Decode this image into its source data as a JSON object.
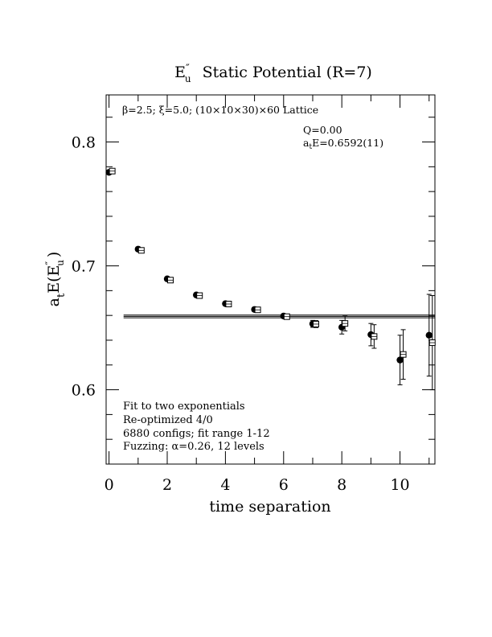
{
  "chart_data": {
    "type": "scatter",
    "title_main": "E",
    "title_sup": "″",
    "title_sub": "u",
    "title_rest": "Static Potential (R=7)",
    "xlabel": "time separation",
    "ylabel_a": "a",
    "ylabel_t": "t",
    "ylabel_rest": "E(E",
    "ylabel_sup": "″",
    "ylabel_sub": "u",
    "ylabel_close": ")",
    "xlim": [
      -0.1,
      11.2
    ],
    "ylim": [
      0.54,
      0.838
    ],
    "xticks": [
      0,
      2,
      4,
      6,
      8,
      10
    ],
    "xtick_labels": [
      "0",
      "2",
      "4",
      "6",
      "8",
      "10"
    ],
    "yticks": [
      0.6,
      0.7,
      0.8
    ],
    "ytick_labels": [
      "0.6",
      "0.7",
      "0.8"
    ],
    "x_minor_step": 1,
    "y_minor_step": 0.02,
    "annotation_top": "β=2.5; ξ=5.0; (10×10×30)×60 Lattice",
    "fit_info": {
      "q_line": "Q=0.00",
      "e_prefix": "a",
      "e_sub": "t",
      "e_value": "E=0.6592(11)"
    },
    "notes": [
      "Fit to two exponentials",
      "Re-optimized 4/0",
      "6880 configs; fit range 1-12",
      "Fuzzing: α=0.26, 12 levels"
    ],
    "fit_band": {
      "center": 0.6592,
      "error": 0.0011,
      "x_start": 0.5,
      "x_end": 11.2
    },
    "series": [
      {
        "marker": "filled-circle",
        "points": [
          {
            "x": 0,
            "y": 0.7755,
            "err": 0.0006
          },
          {
            "x": 1,
            "y": 0.7135,
            "err": 0.0007
          },
          {
            "x": 2,
            "y": 0.6895,
            "err": 0.0008
          },
          {
            "x": 3,
            "y": 0.6765,
            "err": 0.0009
          },
          {
            "x": 4,
            "y": 0.6695,
            "err": 0.001
          },
          {
            "x": 5,
            "y": 0.6648,
            "err": 0.0013
          },
          {
            "x": 6,
            "y": 0.6595,
            "err": 0.0018
          },
          {
            "x": 7,
            "y": 0.6532,
            "err": 0.0028
          },
          {
            "x": 8,
            "y": 0.6505,
            "err": 0.0055
          },
          {
            "x": 9,
            "y": 0.6445,
            "err": 0.009
          },
          {
            "x": 10,
            "y": 0.624,
            "err": 0.02
          },
          {
            "x": 11,
            "y": 0.644,
            "err": 0.033
          }
        ]
      },
      {
        "marker": "open-square",
        "points": [
          {
            "x": 0,
            "y": 0.7765,
            "err": 0.0005
          },
          {
            "x": 1,
            "y": 0.7125,
            "err": 0.0006
          },
          {
            "x": 2,
            "y": 0.6885,
            "err": 0.0008
          },
          {
            "x": 3,
            "y": 0.676,
            "err": 0.0009
          },
          {
            "x": 4,
            "y": 0.6692,
            "err": 0.001
          },
          {
            "x": 5,
            "y": 0.6645,
            "err": 0.0013
          },
          {
            "x": 6,
            "y": 0.659,
            "err": 0.0018
          },
          {
            "x": 7,
            "y": 0.653,
            "err": 0.0028
          },
          {
            "x": 8,
            "y": 0.6535,
            "err": 0.006
          },
          {
            "x": 9,
            "y": 0.643,
            "err": 0.0095
          },
          {
            "x": 10,
            "y": 0.6285,
            "err": 0.02
          },
          {
            "x": 11,
            "y": 0.638,
            "err": 0.038
          }
        ]
      }
    ]
  }
}
